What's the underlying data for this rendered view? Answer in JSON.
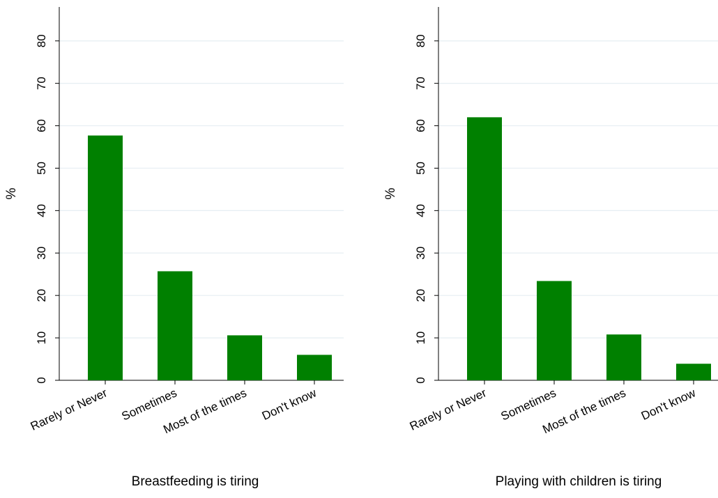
{
  "chart_data": [
    {
      "type": "bar",
      "title": "Breastfeeding is tiring",
      "ylabel": "%",
      "xlabel": "",
      "categories": [
        "Rarely or Never",
        "Sometimes",
        "Most of the times",
        "Don't know"
      ],
      "values": [
        57.7,
        25.7,
        10.6,
        6.0
      ],
      "ylim": [
        0,
        88
      ],
      "yticks": [
        "0",
        "10",
        "20",
        "30",
        "40",
        "50",
        "60",
        "70",
        "80"
      ],
      "grid": true,
      "bar_color": "#008000",
      "grid_color": "#e6eef2"
    },
    {
      "type": "bar",
      "title": "Playing with children is tiring",
      "ylabel": "%",
      "xlabel": "",
      "categories": [
        "Rarely or Never",
        "Sometimes",
        "Most of the times",
        "Don't know"
      ],
      "values": [
        62.0,
        23.4,
        10.8,
        3.9
      ],
      "ylim": [
        0,
        88
      ],
      "yticks": [
        "0",
        "10",
        "20",
        "30",
        "40",
        "50",
        "60",
        "70",
        "80"
      ],
      "grid": true,
      "bar_color": "#008000",
      "grid_color": "#e6eef2"
    }
  ]
}
